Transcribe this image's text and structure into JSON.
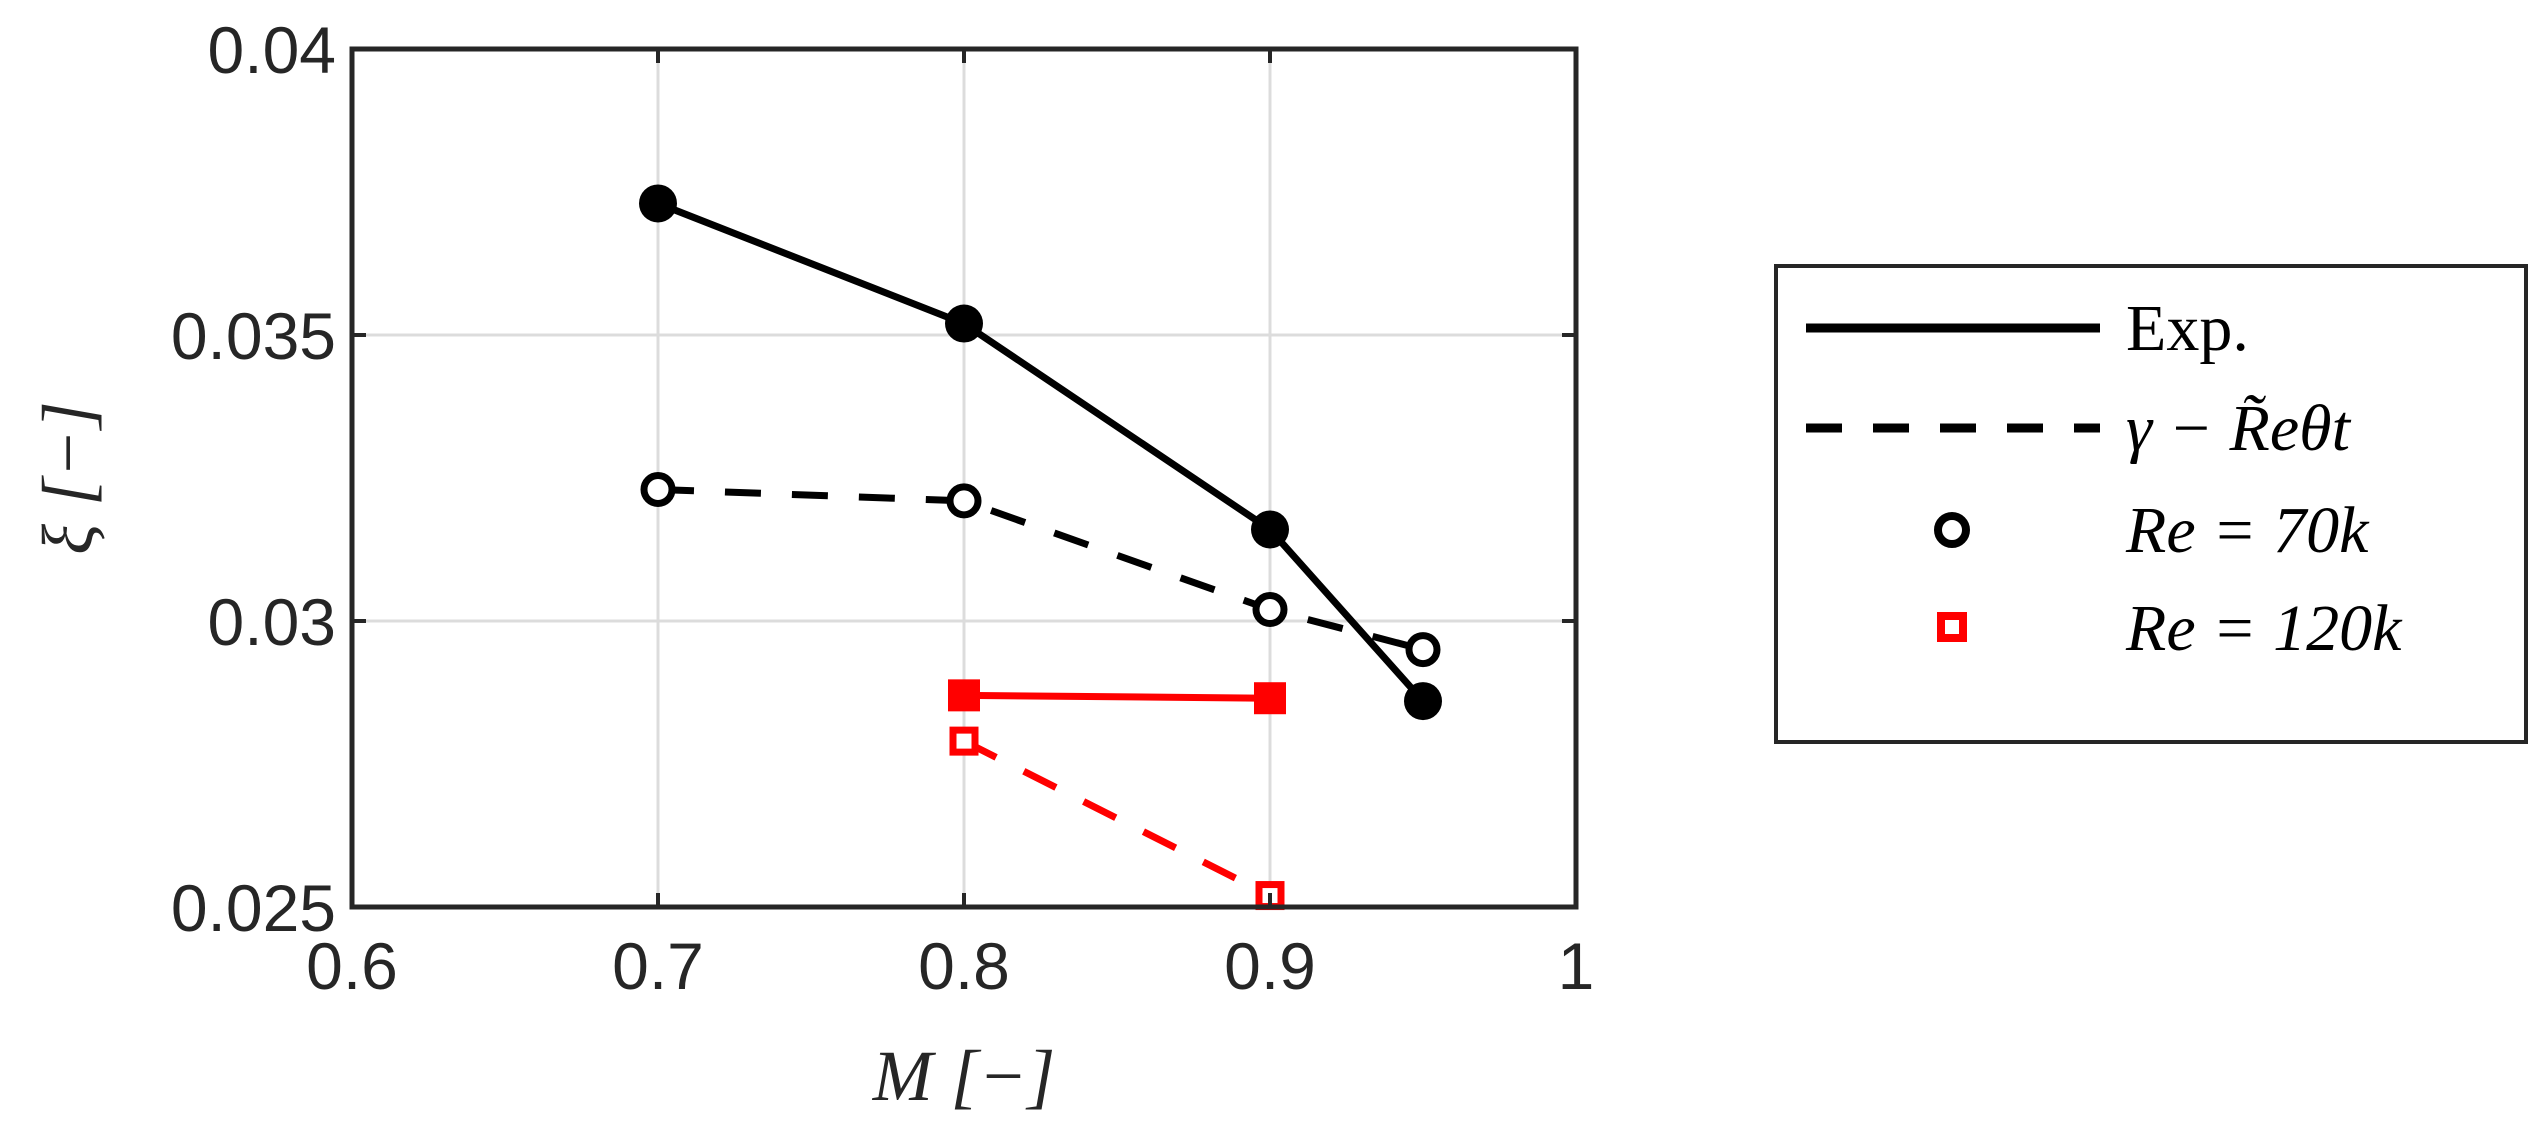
{
  "chart_data": {
    "type": "line",
    "xlabel": "M [−]",
    "ylabel": "ξ [−]",
    "xlim": [
      0.6,
      1
    ],
    "ylim": [
      0.025,
      0.04
    ],
    "xticks": [
      "0.6",
      "0.7",
      "0.8",
      "0.9",
      "1"
    ],
    "yticks": [
      "0.025",
      "0.03",
      "0.035",
      "0.04"
    ],
    "xtick_values": [
      0.6,
      0.7,
      0.8,
      0.9,
      1.0
    ],
    "ytick_values": [
      0.025,
      0.03,
      0.035,
      0.04
    ],
    "grid": true,
    "legend_placement": "outside-right",
    "legend": [
      {
        "label": "Exp.",
        "kind": "solid-line"
      },
      {
        "label": "γ − R̃eθt",
        "kind": "dashed-line"
      },
      {
        "label": "Re = 70k",
        "kind": "circle-marker",
        "color": "#000000"
      },
      {
        "label": "Re = 120k",
        "kind": "square-marker",
        "color": "#ff0000"
      }
    ],
    "series": [
      {
        "group": "Exp., Re = 70k",
        "line": "solid",
        "marker": "circle",
        "filled": true,
        "color": "#000000",
        "x": [
          0.7,
          0.8,
          0.9,
          0.95
        ],
        "y": [
          0.0373,
          0.0352,
          0.0316,
          0.0286
        ]
      },
      {
        "group": "γ − R̃eθt, Re = 70k",
        "line": "dashed",
        "marker": "circle",
        "filled": false,
        "color": "#000000",
        "x": [
          0.7,
          0.8,
          0.9,
          0.95
        ],
        "y": [
          0.0323,
          0.0321,
          0.0302,
          0.0295
        ]
      },
      {
        "group": "Exp., Re = 120k",
        "line": "solid",
        "marker": "square",
        "filled": true,
        "color": "#ff0000",
        "x": [
          0.8,
          0.9
        ],
        "y": [
          0.0287,
          0.02865
        ]
      },
      {
        "group": "γ − R̃eθt, Re = 120k",
        "line": "dashed",
        "marker": "square",
        "filled": false,
        "color": "#ff0000",
        "x": [
          0.8,
          0.9
        ],
        "y": [
          0.0279,
          0.0252
        ]
      }
    ]
  }
}
